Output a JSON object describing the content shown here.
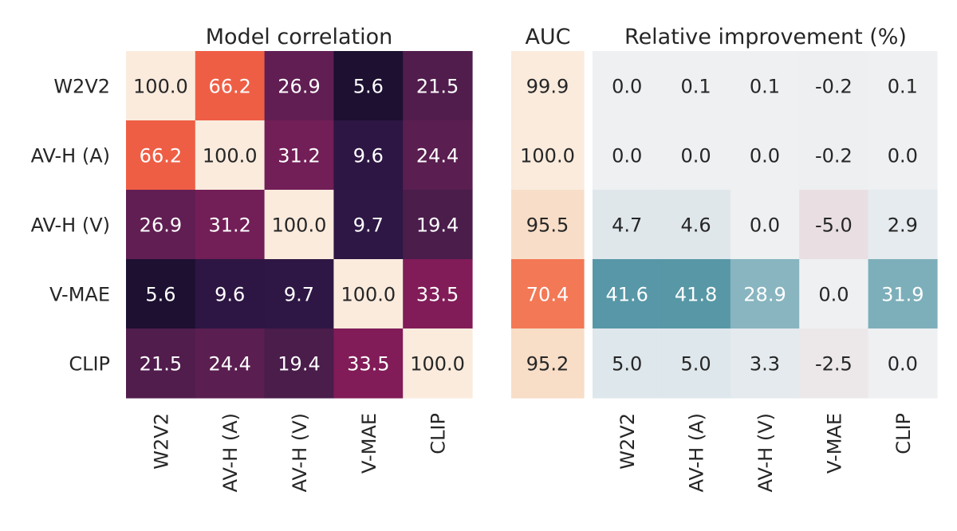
{
  "chart_data": [
    {
      "type": "heatmap",
      "title": "Model correlation",
      "rows": [
        "W2V2",
        "AV-H (A)",
        "AV-H (V)",
        "V-MAE",
        "CLIP"
      ],
      "cols": [
        "W2V2",
        "AV-H (A)",
        "AV-H (V)",
        "V-MAE",
        "CLIP"
      ],
      "values": [
        [
          100.0,
          66.2,
          26.9,
          5.6,
          21.5
        ],
        [
          66.2,
          100.0,
          31.2,
          9.6,
          24.4
        ],
        [
          26.9,
          31.2,
          100.0,
          9.7,
          19.4
        ],
        [
          5.6,
          9.6,
          9.7,
          100.0,
          33.5
        ],
        [
          21.5,
          24.4,
          19.4,
          33.5,
          100.0
        ]
      ],
      "colormap": "rocket",
      "vmin": 0,
      "vmax": 100
    },
    {
      "type": "heatmap",
      "title": "AUC",
      "rows": [
        "W2V2",
        "AV-H (A)",
        "AV-H (V)",
        "V-MAE",
        "CLIP"
      ],
      "values": [
        [
          99.9
        ],
        [
          100.0
        ],
        [
          95.5
        ],
        [
          70.4
        ],
        [
          95.2
        ]
      ],
      "colormap": "rocket",
      "vmin": 0,
      "vmax": 100
    },
    {
      "type": "heatmap",
      "title": "Relative improvement (%)",
      "rows": [
        "W2V2",
        "AV-H (A)",
        "AV-H (V)",
        "V-MAE",
        "CLIP"
      ],
      "cols": [
        "W2V2",
        "AV-H (A)",
        "AV-H (V)",
        "V-MAE",
        "CLIP"
      ],
      "values": [
        [
          0.0,
          0.1,
          0.1,
          -0.2,
          0.1
        ],
        [
          0.0,
          0.0,
          0.0,
          -0.2,
          0.0
        ],
        [
          4.7,
          4.6,
          0.0,
          -5.0,
          2.9
        ],
        [
          41.6,
          41.8,
          28.9,
          0.0,
          31.9
        ],
        [
          5.0,
          5.0,
          3.3,
          -2.5,
          0.0
        ]
      ],
      "colormap": "diverging-teal-red",
      "center": 0,
      "colors": {
        "low": "#e8dcdf",
        "center": "#eef0f2",
        "high": "#4a8fa0"
      }
    }
  ]
}
